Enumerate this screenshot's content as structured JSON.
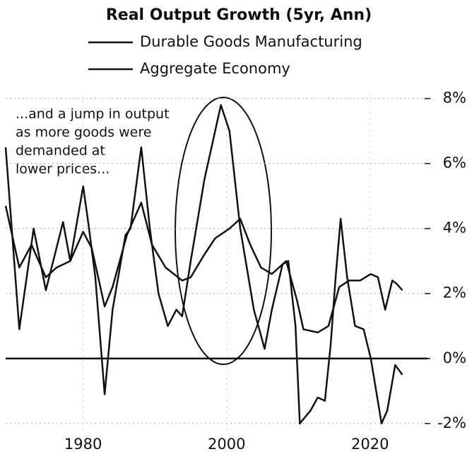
{
  "chart_data": {
    "type": "line",
    "title": "Real Output Growth (5yr, Ann)",
    "annotations": [
      "...and a jump in output",
      "as more goods were",
      "demanded at",
      "lower prices..."
    ],
    "series": [
      {
        "name": "Durable Goods Manufacturing",
        "color": "#111111",
        "x": [
          1969.2,
          1971.1,
          1973.1,
          1974.8,
          1977.2,
          1978.2,
          1980.0,
          1980.7,
          1981.7,
          1983.0,
          1984.1,
          1985.9,
          1986.6,
          1988.1,
          1989.3,
          1990.5,
          1991.8,
          1993.0,
          1993.8,
          1995.0,
          1996.9,
          1999.2,
          2000.4,
          2001.9,
          2003.8,
          2005.3,
          2006.3,
          2007.8,
          2008.6,
          2009.6,
          2010.2,
          2011.7,
          2012.7,
          2013.7,
          2014.5,
          2015.2,
          2015.9,
          2016.8,
          2017.9,
          2019.1,
          2020.1,
          2021.6,
          2022.4,
          2023.5,
          2024.5
        ],
        "values": [
          6.5,
          0.9,
          4.0,
          2.1,
          4.2,
          3.0,
          5.3,
          4.2,
          2.5,
          -1.1,
          1.5,
          3.8,
          4.0,
          6.5,
          4.0,
          2.0,
          1.0,
          1.5,
          1.3,
          3.0,
          5.5,
          7.8,
          7.0,
          4.0,
          1.5,
          0.3,
          1.5,
          2.9,
          3.0,
          1.0,
          -2.0,
          -1.6,
          -1.2,
          -1.3,
          0.4,
          2.5,
          4.3,
          2.5,
          1.0,
          0.9,
          0.0,
          -2.0,
          -1.6,
          -0.2,
          -0.5
        ]
      },
      {
        "name": "Aggregate Economy",
        "color": "#111111",
        "x": [
          1969.2,
          1971.1,
          1972.8,
          1974.8,
          1976.3,
          1978.2,
          1980.0,
          1981.2,
          1983.0,
          1984.1,
          1986.1,
          1988.1,
          1989.6,
          1991.5,
          1993.8,
          1995.0,
          1996.9,
          1998.4,
          2000.4,
          2001.9,
          2003.3,
          2004.8,
          2006.3,
          2008.3,
          2009.8,
          2010.7,
          2012.7,
          2014.2,
          2015.7,
          2017.1,
          2018.6,
          2020.1,
          2021.1,
          2022.1,
          2023.1,
          2023.7,
          2024.5
        ],
        "values": [
          4.7,
          2.8,
          3.5,
          2.5,
          2.8,
          3.0,
          3.9,
          3.4,
          1.6,
          2.2,
          3.8,
          4.8,
          3.5,
          2.8,
          2.4,
          2.5,
          3.2,
          3.7,
          4.0,
          4.3,
          3.5,
          2.8,
          2.6,
          3.0,
          1.8,
          0.9,
          0.8,
          1.0,
          2.2,
          2.4,
          2.4,
          2.6,
          2.5,
          1.5,
          2.4,
          2.3,
          2.1
        ]
      }
    ],
    "xlim": [
      1969.2,
      2028.0
    ],
    "xticks": [
      1980,
      2000,
      2020
    ],
    "ylim": [
      -2.2,
      8.1
    ],
    "yticks": [
      {
        "value": -2,
        "label": "-2%"
      },
      {
        "value": 0,
        "label": "0%"
      },
      {
        "value": 2,
        "label": "2%"
      },
      {
        "value": 4,
        "label": "4%"
      },
      {
        "value": 6,
        "label": "6%"
      },
      {
        "value": 8,
        "label": "8%"
      }
    ],
    "grid": true
  }
}
